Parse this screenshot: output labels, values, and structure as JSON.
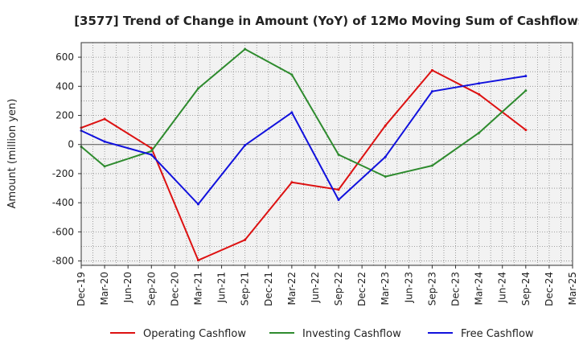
{
  "chart_data": {
    "type": "line",
    "title": "[3577]  Trend of Change in Amount (YoY) of 12Mo Moving Sum of Cashflows",
    "xlabel": "",
    "ylabel": "Amount (million yen)",
    "ylim": [
      -830,
      700
    ],
    "yticks": [
      600,
      400,
      200,
      0,
      -200,
      -400,
      -600,
      -800
    ],
    "ytick_labels": [
      "600",
      "400",
      "200",
      "0",
      "-200",
      "-400",
      "-600",
      "-800"
    ],
    "categories": [
      "Dec-19",
      "Mar-20",
      "Jun-20",
      "Sep-20",
      "Dec-20",
      "Mar-21",
      "Jun-21",
      "Sep-21",
      "Dec-21",
      "Mar-22",
      "Jun-22",
      "Sep-22",
      "Dec-22",
      "Mar-23",
      "Jun-23",
      "Sep-23",
      "Dec-23",
      "Mar-24",
      "Jun-24",
      "Sep-24",
      "Dec-24",
      "Mar-25"
    ],
    "grid": true,
    "legend_position": "bottom",
    "series": [
      {
        "name": "Operating Cashflow",
        "color": "#dd1111",
        "values": [
          115,
          175,
          null,
          -25,
          null,
          -795,
          null,
          -655,
          null,
          -260,
          null,
          -310,
          null,
          130,
          null,
          510,
          null,
          345,
          null,
          100,
          null,
          null
        ]
      },
      {
        "name": "Investing Cashflow",
        "color": "#2e8b2e",
        "values": [
          -15,
          -150,
          null,
          -45,
          null,
          385,
          null,
          655,
          null,
          480,
          null,
          -70,
          null,
          -220,
          null,
          -145,
          null,
          80,
          null,
          370,
          null,
          null
        ]
      },
      {
        "name": "Free Cashflow",
        "color": "#1111dd",
        "values": [
          95,
          20,
          null,
          -70,
          null,
          -410,
          null,
          -5,
          null,
          220,
          null,
          -380,
          null,
          -85,
          null,
          365,
          null,
          420,
          null,
          470,
          null,
          null
        ]
      }
    ]
  }
}
